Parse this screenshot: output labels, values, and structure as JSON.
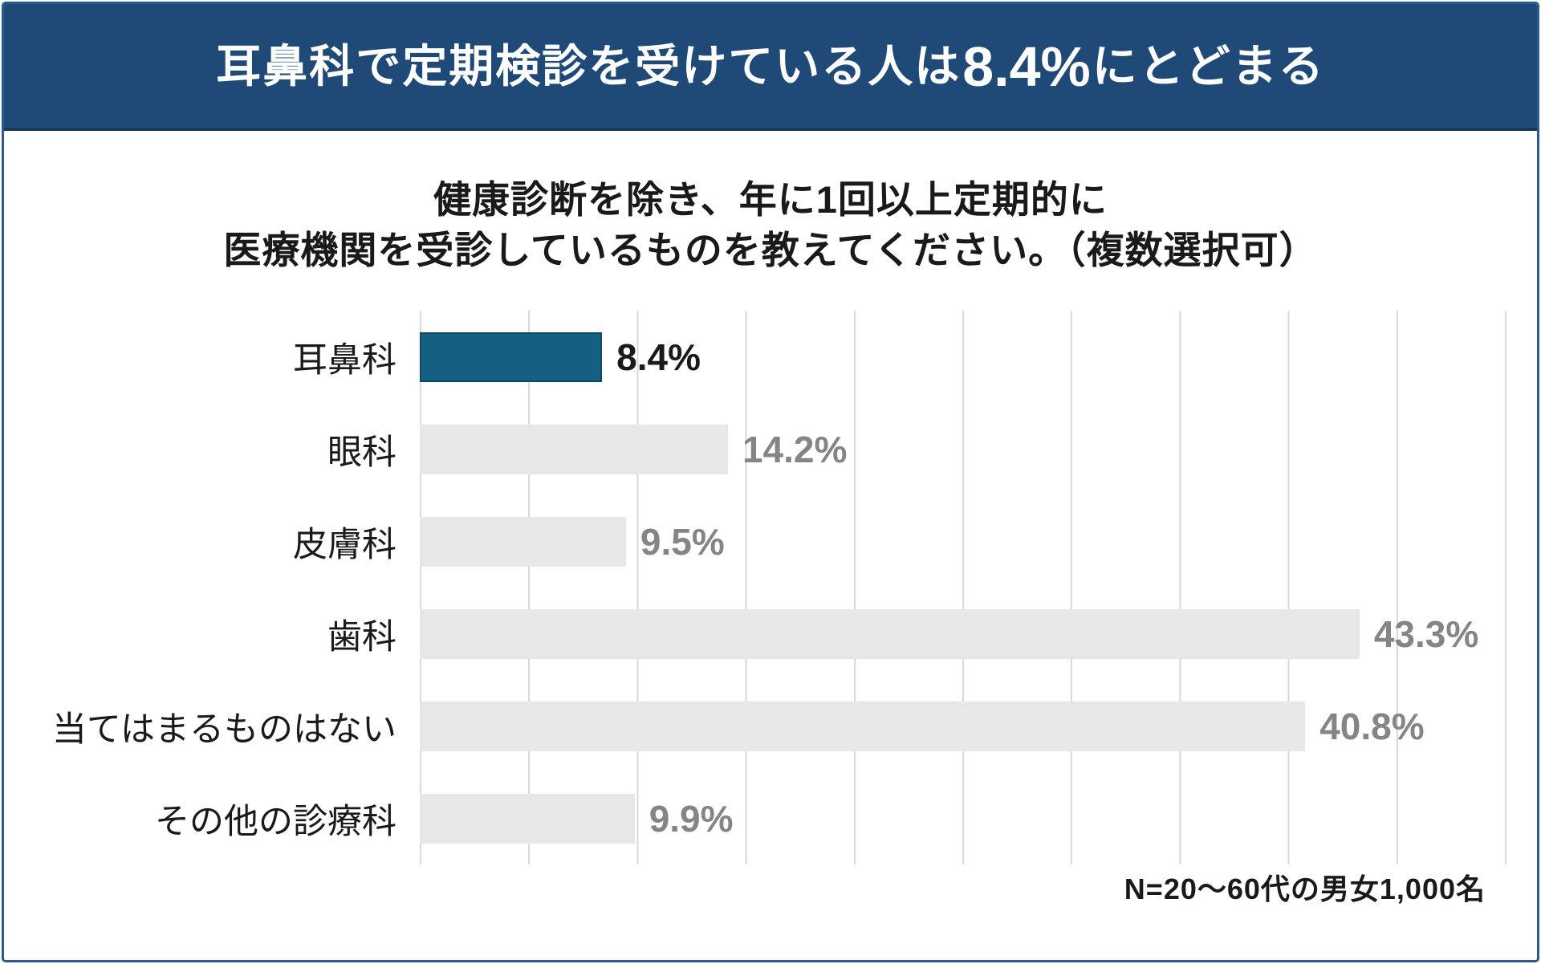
{
  "header": {
    "title_prefix": "耳鼻科で定期検診を受けている人は",
    "title_number": "8.4%",
    "title_suffix": "にとどまる",
    "bg_color": "#1F4976",
    "text_color": "#FFFFFF"
  },
  "question": {
    "line1": "健康診断を除き、年に1回以上定期的に",
    "line2": "医療機関を受診しているものを教えてください。（複数選択可）"
  },
  "chart_data": {
    "type": "bar",
    "orientation": "horizontal",
    "title": "健康診断を除き、年に1回以上定期的に医療機関を受診しているものを教えてください。（複数選択可）",
    "categories": [
      "耳鼻科",
      "眼科",
      "皮膚科",
      "歯科",
      "当てはまるものはない",
      "その他の診療科"
    ],
    "values": [
      8.4,
      14.2,
      9.5,
      43.3,
      40.8,
      9.9
    ],
    "value_labels": [
      "8.4%",
      "14.2%",
      "9.5%",
      "43.3%",
      "40.8%",
      "9.9%"
    ],
    "xlim": [
      0,
      50
    ],
    "gridline_interval": 5,
    "grid": true,
    "legend": false,
    "axis_tick_labels": false,
    "highlight_index": 0,
    "highlight_bar_color": "#156082",
    "default_bar_color": "#E7E7E7",
    "highlight_value_color": "#1A1A1A",
    "default_value_color": "#858585",
    "gridline_color": "#D9D9D9"
  },
  "footnote": {
    "text": "N=20〜60代の男女1,000名"
  }
}
